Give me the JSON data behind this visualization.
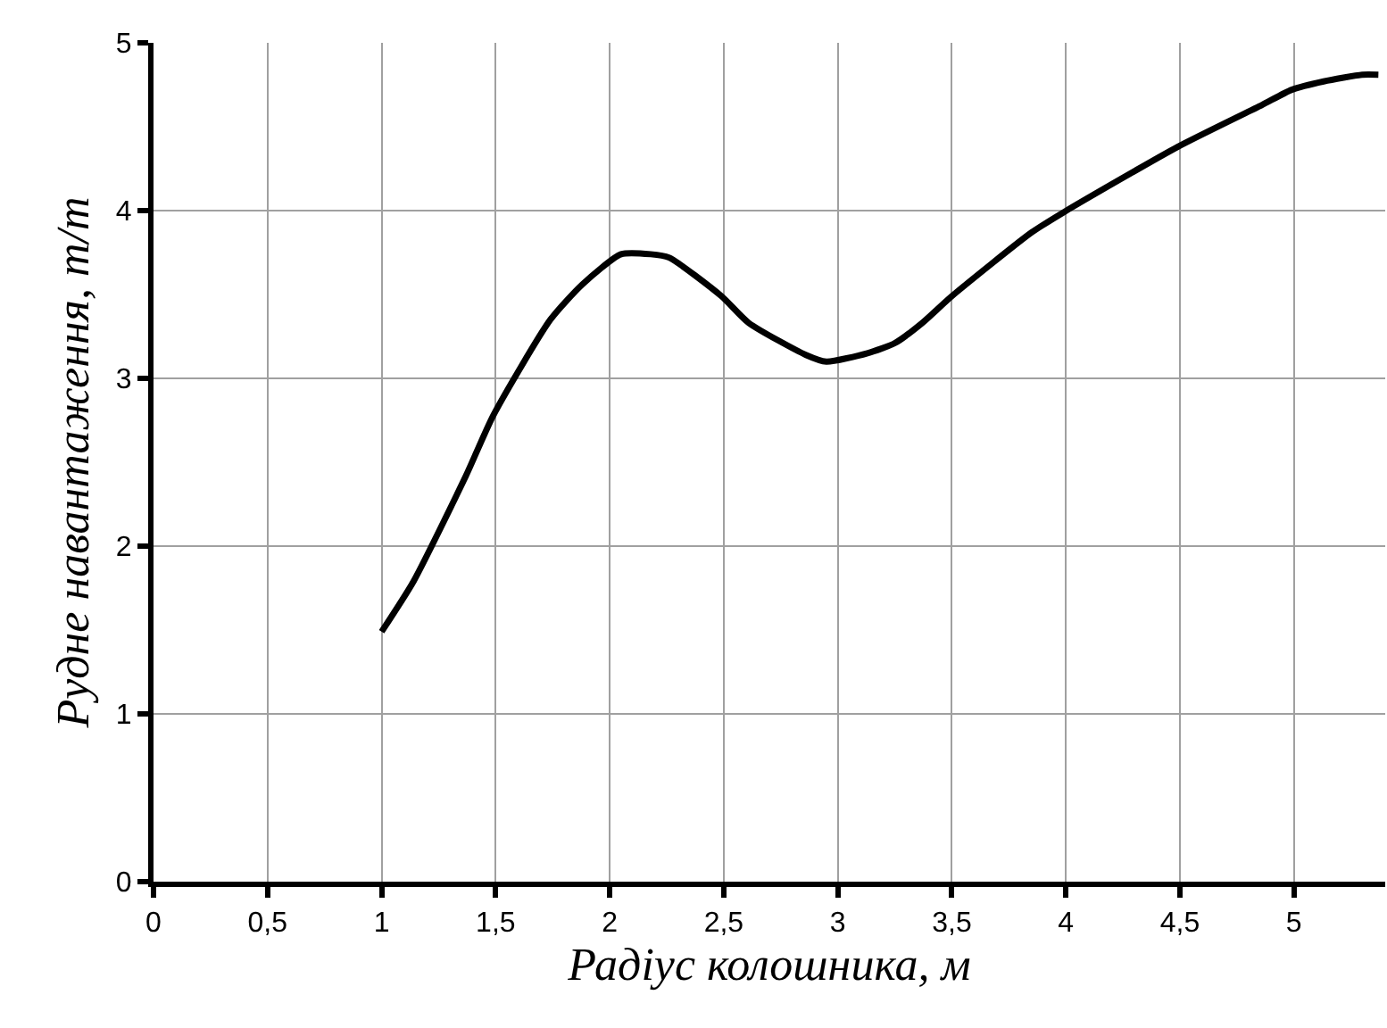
{
  "chart_data": {
    "type": "line",
    "xlabel": "Радіус колошника, м",
    "ylabel": "Рудне навантаження, т/т",
    "x": [
      1,
      1.14,
      1.37,
      1.49,
      1.74,
      1.88,
      2.05,
      2.18,
      2.26,
      2.49,
      2.61,
      2.86,
      2.95,
      3.13,
      3.25,
      3.37,
      3.5,
      3.85,
      3.99,
      4.49,
      4.86,
      4.99,
      5.13,
      5.3,
      5.37
    ],
    "series": [
      {
        "color": "#000000",
        "values": [
          1.49,
          1.79,
          2.42,
          2.78,
          3.35,
          3.56,
          3.74,
          3.74,
          3.72,
          3.49,
          3.33,
          3.14,
          3.1,
          3.15,
          3.21,
          3.33,
          3.49,
          3.87,
          3.99,
          4.38,
          4.63,
          4.72,
          4.77,
          4.81,
          4.81
        ]
      }
    ],
    "xlim": [
      0,
      5.4
    ],
    "xticks": [
      0,
      {
        "value": 0.5,
        "label": "0,5"
      },
      1,
      {
        "value": 1.5,
        "label": "1,5"
      },
      2,
      {
        "value": 2.5,
        "label": "2,5"
      },
      3,
      {
        "value": 3.5,
        "label": "3,5"
      },
      4,
      {
        "value": 4.5,
        "label": "4,5"
      },
      5
    ],
    "ylim": [
      0,
      5
    ],
    "yticks": [
      0,
      1,
      2,
      3,
      4,
      5
    ],
    "grid": true,
    "legend": false,
    "marker": "none",
    "line_style": "solid"
  }
}
